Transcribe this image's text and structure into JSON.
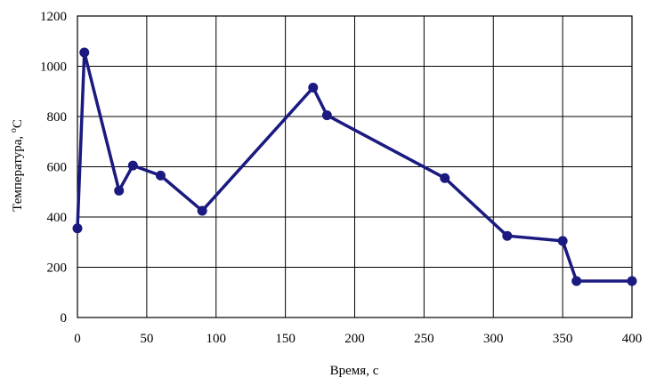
{
  "chart_data": {
    "type": "line",
    "title": "",
    "xlabel": "Время, с",
    "ylabel": "Температура, °С",
    "ylabel_parts": {
      "text": "Температура, ",
      "sup": "о",
      "unit": "С"
    },
    "xlim": [
      0,
      400
    ],
    "ylim": [
      0,
      1200
    ],
    "xticks": [
      0,
      50,
      100,
      150,
      200,
      250,
      300,
      350,
      400
    ],
    "yticks": [
      0,
      200,
      400,
      600,
      800,
      1000,
      1200
    ],
    "grid": true,
    "legend": "none",
    "series": [
      {
        "color": "#1a1a80",
        "points": [
          [
            0,
            355
          ],
          [
            5,
            1055
          ],
          [
            30,
            505
          ],
          [
            40,
            605
          ],
          [
            60,
            565
          ],
          [
            90,
            425
          ],
          [
            170,
            915
          ],
          [
            180,
            805
          ],
          [
            265,
            555
          ],
          [
            310,
            325
          ],
          [
            350,
            305
          ],
          [
            360,
            145
          ],
          [
            400,
            145
          ]
        ]
      }
    ]
  }
}
